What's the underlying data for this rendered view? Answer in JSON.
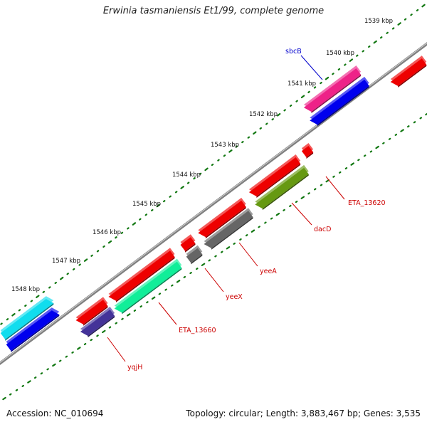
{
  "title": "Erwinia tasmaniensis Et1/99, complete genome",
  "accession_text": "Accession: NC_010694",
  "summary_text": "Topology: circular; Length: 3,883,467 bp; Genes: 3,535",
  "ticks": [
    "1539 kbp",
    "1540 kbp",
    "1541 kbp",
    "1542 kbp",
    "1543 kbp",
    "1544 kbp",
    "1545 kbp",
    "1546 kbp",
    "1547 kbp",
    "1548 kbp"
  ],
  "gene_labels": [
    {
      "key": "sbcB",
      "text": "sbcB",
      "color": "#0000cc"
    },
    {
      "key": "ETA_13620",
      "text": "ETA_13620",
      "color": "#cc0000"
    },
    {
      "key": "dacD",
      "text": "dacD",
      "color": "#cc0000"
    },
    {
      "key": "yeeA",
      "text": "yeeA",
      "color": "#cc0000"
    },
    {
      "key": "yeeX",
      "text": "yeeX",
      "color": "#cc0000"
    },
    {
      "key": "ETA_13660",
      "text": "ETA_13660",
      "color": "#cc0000"
    },
    {
      "key": "yqjH",
      "text": "yqjH",
      "color": "#cc0000"
    }
  ],
  "colors": {
    "backbone": "#808080",
    "tick": "#117711",
    "red_gene": "#ee0000",
    "pink_gene": "#ee2288",
    "blue_gene": "#0000ee",
    "cyan_gene": "#11ddee",
    "teal_gene": "#11ee99",
    "olive_gene": "#669911",
    "gray_gene": "#666666",
    "navy_gene": "#443399"
  }
}
